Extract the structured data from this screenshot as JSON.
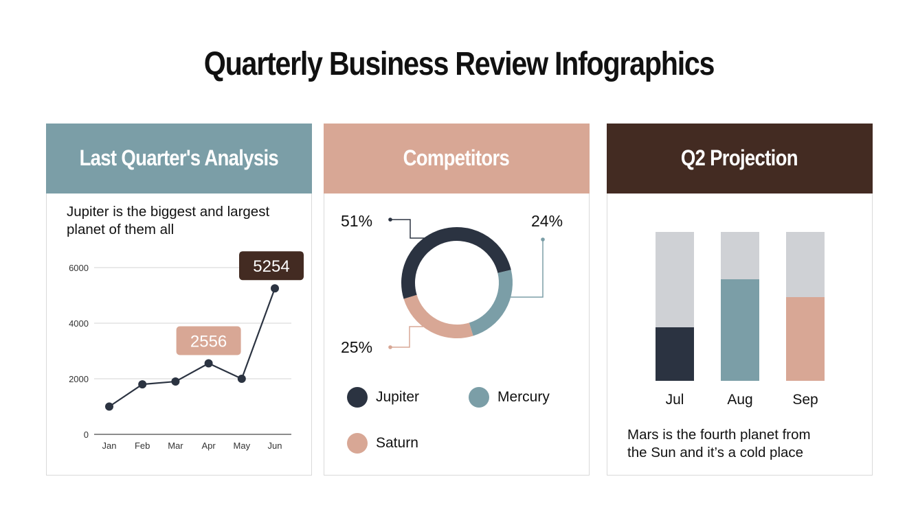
{
  "title": "Quarterly Business Review Infographics",
  "colors": {
    "teal": "#7b9ea7",
    "salmon": "#d8a795",
    "brown": "#432b22",
    "navy": "#2b3341",
    "gray": "#cfd1d5",
    "grid": "#dcdcdc"
  },
  "cards": {
    "analysis": {
      "header": "Last Quarter's Analysis",
      "description_line1": "Jupiter is the biggest and largest",
      "description_line2": "planet of them all"
    },
    "competitors": {
      "header": "Competitors"
    },
    "projection": {
      "header": "Q2 Projection",
      "description_line1": "Mars is the fourth planet from",
      "description_line2": "the Sun and it’s a cold place"
    }
  },
  "chart_data": [
    {
      "type": "line",
      "title": "Last Quarter's Analysis",
      "categories": [
        "Jan",
        "Feb",
        "Mar",
        "Apr",
        "May",
        "Jun"
      ],
      "values": [
        1000,
        1800,
        1900,
        2556,
        2000,
        5254
      ],
      "ylim": [
        0,
        6000
      ],
      "yticks": [
        0,
        2000,
        4000,
        6000
      ],
      "ytick_labels": [
        "0",
        "2000",
        "4000",
        "6000"
      ],
      "grid": true,
      "annotations": [
        {
          "category": "Apr",
          "label": "2556",
          "color": "#d8a795"
        },
        {
          "category": "Jun",
          "label": "5254",
          "color": "#432b22"
        }
      ],
      "xlabel": "",
      "ylabel": ""
    },
    {
      "type": "pie",
      "style": "donut",
      "title": "Competitors",
      "labels": [
        "Jupiter",
        "Mercury",
        "Saturn"
      ],
      "values": [
        51,
        24,
        25
      ],
      "value_labels": [
        "51%",
        "24%",
        "25%"
      ],
      "colors": [
        "#2b3341",
        "#7b9ea7",
        "#d8a795"
      ],
      "legend_position": "bottom"
    },
    {
      "type": "bar",
      "style": "progress",
      "title": "Q2 Projection",
      "categories": [
        "Jul",
        "Aug",
        "Sep"
      ],
      "values": [
        36,
        68,
        56
      ],
      "ylim": [
        0,
        100
      ],
      "colors": [
        "#2b3341",
        "#7b9ea7",
        "#d8a795"
      ],
      "track_color": "#cfd1d5",
      "xlabel": "",
      "ylabel": ""
    }
  ]
}
